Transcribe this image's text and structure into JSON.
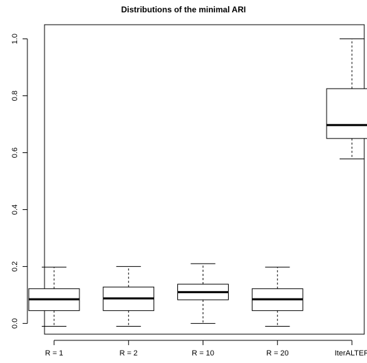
{
  "chart_data": {
    "type": "box",
    "title": "Distributions of the minimal ARI",
    "xlabel": "",
    "ylabel": "",
    "categories": [
      "R = 1",
      "R = 2",
      "R = 10",
      "R = 20",
      "IterALTER"
    ],
    "ylim": [
      -0.045,
      1.045
    ],
    "yticks": [
      0.0,
      0.2,
      0.4,
      0.6,
      0.8,
      1.0
    ],
    "ytick_labels": [
      "0.0",
      "0.2",
      "0.4",
      "0.6",
      "0.8",
      "1.0"
    ],
    "boxes": [
      {
        "whisker_low": -0.01,
        "q1": 0.045,
        "median": 0.085,
        "q3": 0.122,
        "whisker_high": 0.198
      },
      {
        "whisker_low": -0.01,
        "q1": 0.045,
        "median": 0.088,
        "q3": 0.128,
        "whisker_high": 0.2
      },
      {
        "whisker_low": 0.0,
        "q1": 0.083,
        "median": 0.11,
        "q3": 0.138,
        "whisker_high": 0.21
      },
      {
        "whisker_low": -0.01,
        "q1": 0.045,
        "median": 0.085,
        "q3": 0.122,
        "whisker_high": 0.198
      },
      {
        "whisker_low": 0.578,
        "q1": 0.65,
        "median": 0.697,
        "q3": 0.825,
        "whisker_high": 1.0
      }
    ],
    "grid": false,
    "legend": "none"
  }
}
